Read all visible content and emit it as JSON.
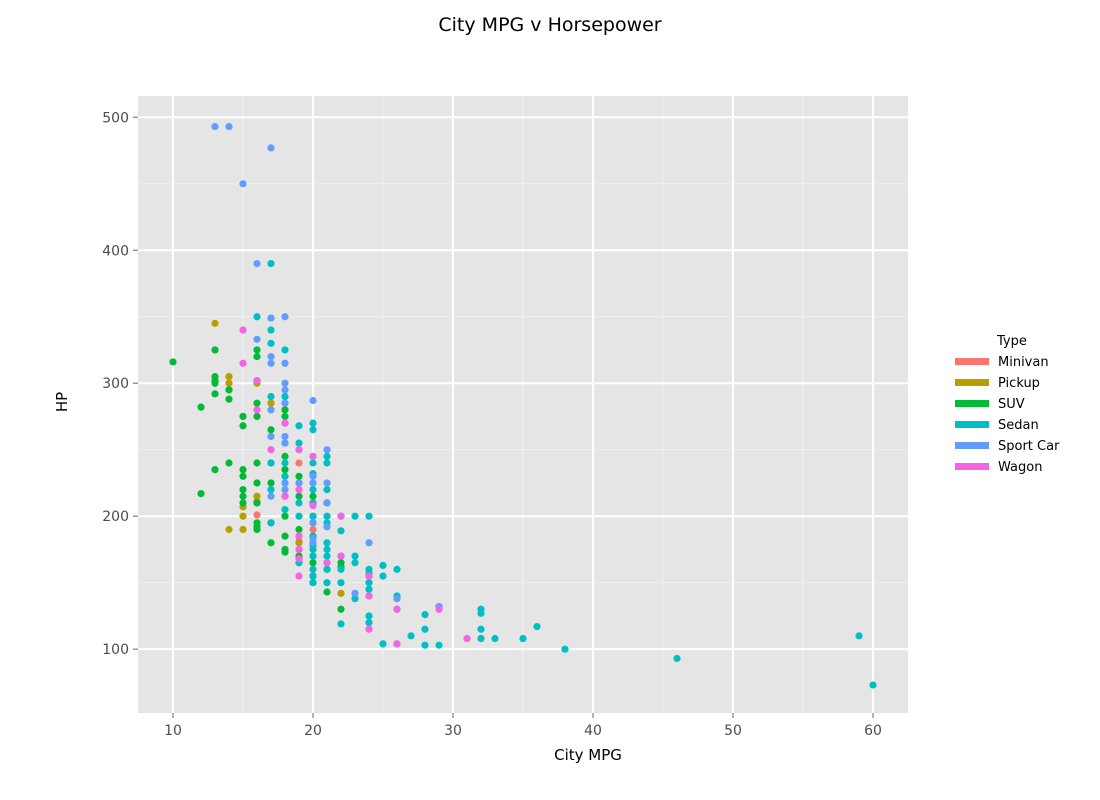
{
  "chart_data": {
    "type": "scatter",
    "title": "City MPG v Horsepower",
    "xlabel": "City MPG",
    "ylabel": "HP",
    "xlim": [
      7.5,
      62.5
    ],
    "ylim": [
      52,
      516
    ],
    "x_ticks": [
      10,
      20,
      30,
      40,
      50,
      60
    ],
    "y_ticks": [
      100,
      200,
      300,
      400,
      500
    ],
    "x_tick_labels": [
      "10",
      "20",
      "30",
      "40",
      "50",
      "60"
    ],
    "y_tick_labels": [
      "100",
      "200",
      "300",
      "400",
      "500"
    ],
    "grid": true,
    "legend": {
      "title": "Type",
      "position": "right",
      "entries": [
        {
          "name": "Minivan",
          "color": "#F8766D"
        },
        {
          "name": "Pickup",
          "color": "#B79F00"
        },
        {
          "name": "SUV",
          "color": "#00BA38"
        },
        {
          "name": "Sedan",
          "color": "#00BFC4"
        },
        {
          "name": "Sport Car",
          "color": "#619CFF"
        },
        {
          "name": "Wagon",
          "color": "#F564E3"
        }
      ]
    },
    "series": [
      {
        "name": "Minivan",
        "color": "#F8766D",
        "points": [
          [
            16,
            201
          ],
          [
            18,
            215
          ],
          [
            19,
            240
          ],
          [
            19,
            181
          ],
          [
            20,
            190
          ],
          [
            18,
            215
          ],
          [
            16,
            210
          ]
        ]
      },
      {
        "name": "Pickup",
        "color": "#B79F00",
        "points": [
          [
            13,
            345
          ],
          [
            14,
            305
          ],
          [
            14,
            300
          ],
          [
            14,
            190
          ],
          [
            15,
            207
          ],
          [
            15,
            200
          ],
          [
            15,
            190
          ],
          [
            16,
            300
          ],
          [
            16,
            215
          ],
          [
            17,
            285
          ],
          [
            19,
            180
          ],
          [
            19,
            175
          ],
          [
            19,
            170
          ],
          [
            22,
            142
          ],
          [
            14,
            295
          ],
          [
            16,
            211
          ]
        ]
      },
      {
        "name": "SUV",
        "color": "#00BA38",
        "points": [
          [
            10,
            316
          ],
          [
            12,
            282
          ],
          [
            12,
            217
          ],
          [
            13,
            325
          ],
          [
            13,
            305
          ],
          [
            13,
            302
          ],
          [
            13,
            300
          ],
          [
            13,
            292
          ],
          [
            13,
            235
          ],
          [
            14,
            295
          ],
          [
            14,
            288
          ],
          [
            14,
            240
          ],
          [
            15,
            275
          ],
          [
            15,
            268
          ],
          [
            15,
            235
          ],
          [
            15,
            230
          ],
          [
            15,
            220
          ],
          [
            15,
            215
          ],
          [
            15,
            210
          ],
          [
            16,
            325
          ],
          [
            16,
            320
          ],
          [
            16,
            285
          ],
          [
            16,
            275
          ],
          [
            16,
            240
          ],
          [
            16,
            225
          ],
          [
            16,
            210
          ],
          [
            16,
            195
          ],
          [
            16,
            192
          ],
          [
            16,
            190
          ],
          [
            17,
            265
          ],
          [
            17,
            240
          ],
          [
            17,
            225
          ],
          [
            17,
            195
          ],
          [
            17,
            180
          ],
          [
            18,
            280
          ],
          [
            18,
            275
          ],
          [
            18,
            245
          ],
          [
            18,
            235
          ],
          [
            18,
            200
          ],
          [
            18,
            185
          ],
          [
            18,
            175
          ],
          [
            18,
            173
          ],
          [
            19,
            230
          ],
          [
            19,
            215
          ],
          [
            19,
            190
          ],
          [
            19,
            170
          ],
          [
            19,
            165
          ],
          [
            20,
            215
          ],
          [
            20,
            210
          ],
          [
            20,
            200
          ],
          [
            20,
            185
          ],
          [
            20,
            170
          ],
          [
            20,
            165
          ],
          [
            20,
            155
          ],
          [
            20,
            150
          ],
          [
            21,
            165
          ],
          [
            21,
            160
          ],
          [
            21,
            143
          ],
          [
            22,
            165
          ],
          [
            22,
            162
          ],
          [
            22,
            130
          ]
        ]
      },
      {
        "name": "Sedan",
        "color": "#00BFC4",
        "points": [
          [
            16,
            350
          ],
          [
            16,
            302
          ],
          [
            17,
            390
          ],
          [
            17,
            340
          ],
          [
            17,
            330
          ],
          [
            17,
            290
          ],
          [
            17,
            240
          ],
          [
            17,
            220
          ],
          [
            17,
            195
          ],
          [
            18,
            325
          ],
          [
            18,
            290
          ],
          [
            18,
            270
          ],
          [
            18,
            255
          ],
          [
            18,
            240
          ],
          [
            18,
            230
          ],
          [
            18,
            205
          ],
          [
            19,
            268
          ],
          [
            19,
            255
          ],
          [
            19,
            225
          ],
          [
            19,
            210
          ],
          [
            19,
            200
          ],
          [
            19,
            185
          ],
          [
            19,
            165
          ],
          [
            20,
            270
          ],
          [
            20,
            265
          ],
          [
            20,
            240
          ],
          [
            20,
            232
          ],
          [
            20,
            220
          ],
          [
            20,
            210
          ],
          [
            20,
            200
          ],
          [
            20,
            195
          ],
          [
            20,
            185
          ],
          [
            20,
            178
          ],
          [
            20,
            175
          ],
          [
            20,
            170
          ],
          [
            20,
            160
          ],
          [
            20,
            155
          ],
          [
            20,
            150
          ],
          [
            21,
            245
          ],
          [
            21,
            240
          ],
          [
            21,
            220
          ],
          [
            21,
            210
          ],
          [
            21,
            200
          ],
          [
            21,
            195
          ],
          [
            21,
            180
          ],
          [
            21,
            175
          ],
          [
            21,
            170
          ],
          [
            21,
            160
          ],
          [
            21,
            150
          ],
          [
            22,
            200
          ],
          [
            22,
            189
          ],
          [
            22,
            170
          ],
          [
            22,
            160
          ],
          [
            22,
            150
          ],
          [
            22,
            119
          ],
          [
            23,
            200
          ],
          [
            23,
            170
          ],
          [
            23,
            165
          ],
          [
            23,
            138
          ],
          [
            24,
            200
          ],
          [
            24,
            160
          ],
          [
            24,
            157
          ],
          [
            24,
            155
          ],
          [
            24,
            150
          ],
          [
            24,
            145
          ],
          [
            24,
            140
          ],
          [
            24,
            125
          ],
          [
            24,
            120
          ],
          [
            25,
            163
          ],
          [
            25,
            155
          ],
          [
            25,
            104
          ],
          [
            26,
            160
          ],
          [
            26,
            140
          ],
          [
            26,
            130
          ],
          [
            26,
            104
          ],
          [
            27,
            110
          ],
          [
            28,
            126
          ],
          [
            28,
            115
          ],
          [
            28,
            103
          ],
          [
            29,
            132
          ],
          [
            29,
            103
          ],
          [
            32,
            130
          ],
          [
            32,
            127
          ],
          [
            32,
            115
          ],
          [
            32,
            108
          ],
          [
            33,
            108
          ],
          [
            35,
            108
          ],
          [
            36,
            117
          ],
          [
            38,
            100
          ],
          [
            46,
            93
          ],
          [
            59,
            110
          ],
          [
            60,
            73
          ]
        ]
      },
      {
        "name": "Sport Car",
        "color": "#619CFF",
        "points": [
          [
            13,
            493
          ],
          [
            14,
            493
          ],
          [
            15,
            450
          ],
          [
            16,
            390
          ],
          [
            16,
            333
          ],
          [
            17,
            477
          ],
          [
            17,
            349
          ],
          [
            17,
            320
          ],
          [
            17,
            315
          ],
          [
            17,
            280
          ],
          [
            17,
            260
          ],
          [
            17,
            215
          ],
          [
            18,
            350
          ],
          [
            18,
            315
          ],
          [
            18,
            300
          ],
          [
            18,
            295
          ],
          [
            18,
            285
          ],
          [
            18,
            260
          ],
          [
            18,
            255
          ],
          [
            18,
            225
          ],
          [
            18,
            220
          ],
          [
            19,
            225
          ],
          [
            20,
            287
          ],
          [
            20,
            245
          ],
          [
            20,
            230
          ],
          [
            20,
            225
          ],
          [
            20,
            195
          ],
          [
            20,
            183
          ],
          [
            20,
            180
          ],
          [
            21,
            250
          ],
          [
            21,
            225
          ],
          [
            21,
            210
          ],
          [
            21,
            192
          ],
          [
            23,
            142
          ],
          [
            24,
            180
          ],
          [
            26,
            138
          ],
          [
            29,
            132
          ]
        ]
      },
      {
        "name": "Wagon",
        "color": "#F564E3",
        "points": [
          [
            15,
            340
          ],
          [
            15,
            315
          ],
          [
            16,
            302
          ],
          [
            16,
            280
          ],
          [
            17,
            250
          ],
          [
            18,
            270
          ],
          [
            18,
            215
          ],
          [
            19,
            250
          ],
          [
            19,
            220
          ],
          [
            19,
            185
          ],
          [
            19,
            175
          ],
          [
            19,
            168
          ],
          [
            19,
            155
          ],
          [
            20,
            245
          ],
          [
            20,
            208
          ],
          [
            21,
            165
          ],
          [
            22,
            200
          ],
          [
            22,
            170
          ],
          [
            24,
            155
          ],
          [
            24,
            140
          ],
          [
            24,
            115
          ],
          [
            26,
            130
          ],
          [
            26,
            104
          ],
          [
            29,
            130
          ],
          [
            31,
            108
          ]
        ]
      }
    ]
  }
}
